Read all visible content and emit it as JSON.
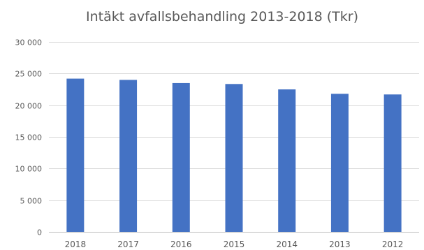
{
  "chart_data": {
    "type": "bar",
    "title": "Intäkt avfallsbehandling 2013-2018 (Tkr)",
    "categories": [
      "2018",
      "2017",
      "2016",
      "2015",
      "2014",
      "2013",
      "2012"
    ],
    "series": [
      {
        "values": [
          24200,
          24000,
          23500,
          23350,
          22500,
          21800,
          21700
        ]
      }
    ],
    "ylim": [
      0,
      30000
    ],
    "yticks": [
      0,
      5000,
      10000,
      15000,
      20000,
      25000,
      30000
    ],
    "ytick_labels": [
      "0",
      "5 000",
      "10 000",
      "15 000",
      "20 000",
      "25 000",
      "30 000"
    ],
    "grid": true,
    "legend": "none",
    "bar_color": "#4472c4"
  }
}
